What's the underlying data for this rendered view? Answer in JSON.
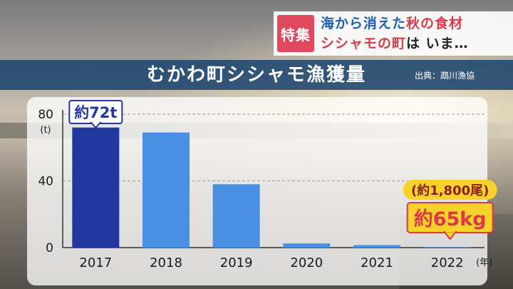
{
  "caption": {
    "badge": "特集",
    "line1": [
      {
        "text": "海から消えた",
        "color": "#1f5fb3"
      },
      {
        "text": "秋の食材",
        "color": "#d83a4b"
      }
    ],
    "line2": [
      {
        "text": "シシャモの町",
        "color": "#d83a4b"
      },
      {
        "text": "は いま…",
        "color": "#222222"
      }
    ]
  },
  "title": "むかわ町シシャモ漁獲量",
  "source": "出典：鵡川漁協",
  "chart_data": {
    "type": "bar",
    "categories": [
      "2017",
      "2018",
      "2019",
      "2020",
      "2021",
      "2022"
    ],
    "values": [
      72,
      69,
      38,
      2.5,
      1.5,
      0.065
    ],
    "ylabel": "(t)",
    "xlabel": "(年)",
    "ylim": [
      0,
      80
    ],
    "yticks": [
      0,
      40,
      80
    ],
    "grid": true,
    "highlight_color": "#21389e",
    "bar_color": "#4a90e2",
    "annotations": [
      {
        "category": "2017",
        "text": "約72t"
      },
      {
        "category": "2022",
        "line1": "(約1,800尾)",
        "line2": "約65kg"
      }
    ]
  }
}
